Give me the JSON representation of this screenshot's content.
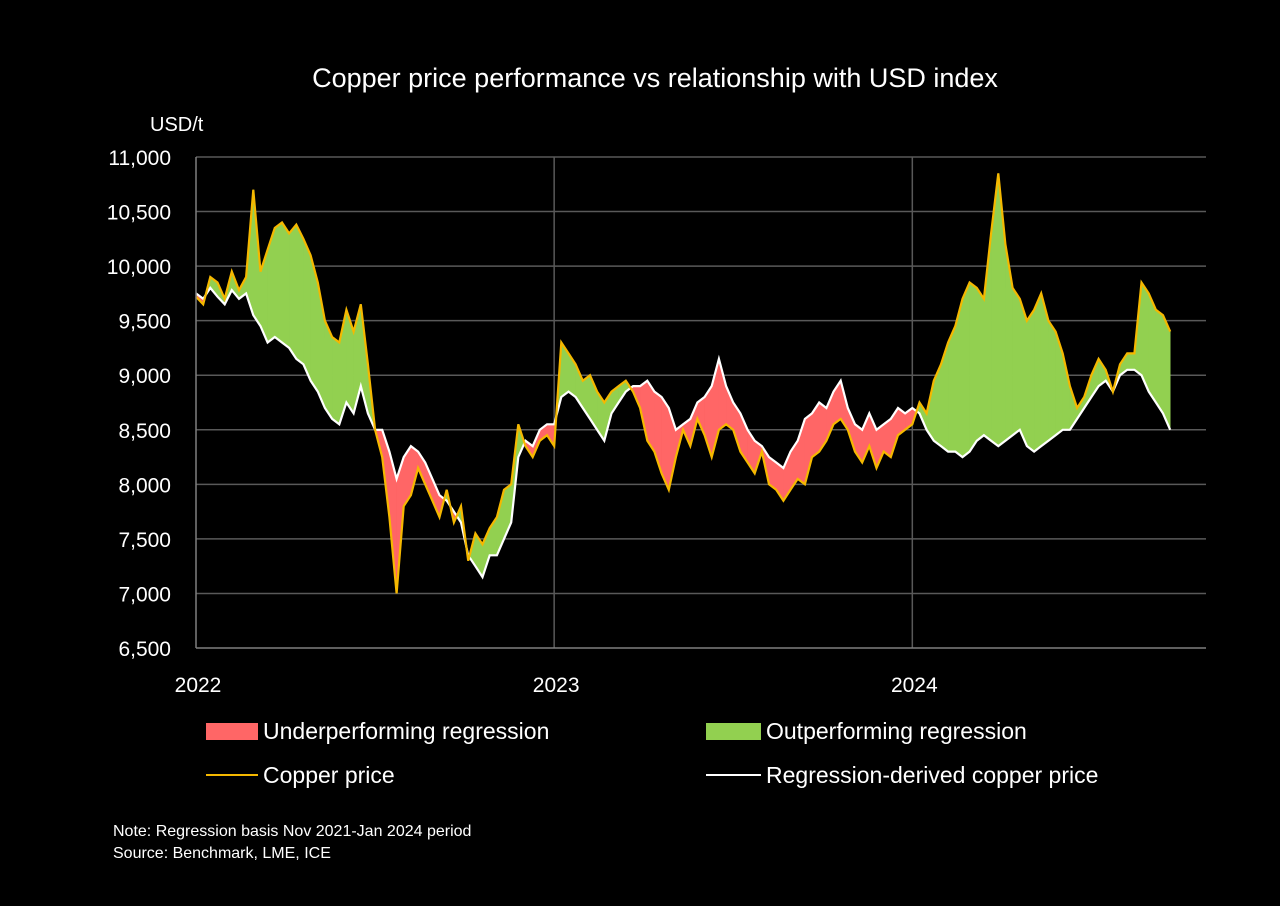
{
  "chart_data": {
    "type": "area",
    "title": "Copper price performance vs relationship with USD index",
    "ylabel": "USD/t",
    "xlabel": "",
    "ylim": [
      6500,
      11000
    ],
    "yticks": [
      6500,
      7000,
      7500,
      8000,
      8500,
      9000,
      9500,
      10000,
      10500,
      11000
    ],
    "ytick_labels": [
      "6,500",
      "7,000",
      "7,500",
      "8,000",
      "8,500",
      "9,000",
      "9,500",
      "10,000",
      "10,500",
      "11,000"
    ],
    "xlim": [
      2022.0,
      2024.82
    ],
    "xticks": [
      2022,
      2023,
      2024
    ],
    "xtick_labels": [
      "2022",
      "2023",
      "2024"
    ],
    "grid": true,
    "colors": {
      "underperforming": "#FF6666",
      "outperforming": "#92D050",
      "copper": "#F5B800",
      "regression": "#FFFFFF",
      "grid": "#595959",
      "background": "#000000"
    },
    "legend": {
      "placement": "bottom",
      "items": [
        {
          "label": "Underperforming regression",
          "kind": "fill",
          "key": "underperforming"
        },
        {
          "label": "Outperforming regression",
          "kind": "fill",
          "key": "outperforming"
        },
        {
          "label": "Copper price",
          "kind": "line",
          "key": "copper"
        },
        {
          "label": "Regression-derived copper price",
          "kind": "line",
          "key": "regression"
        }
      ]
    },
    "x": [
      2022.0,
      2022.02,
      2022.04,
      2022.06,
      2022.08,
      2022.1,
      2022.12,
      2022.14,
      2022.16,
      2022.18,
      2022.2,
      2022.22,
      2022.24,
      2022.26,
      2022.28,
      2022.3,
      2022.32,
      2022.34,
      2022.36,
      2022.38,
      2022.4,
      2022.42,
      2022.44,
      2022.46,
      2022.48,
      2022.5,
      2022.52,
      2022.54,
      2022.56,
      2022.58,
      2022.6,
      2022.62,
      2022.64,
      2022.66,
      2022.68,
      2022.7,
      2022.72,
      2022.74,
      2022.76,
      2022.78,
      2022.8,
      2022.82,
      2022.84,
      2022.86,
      2022.88,
      2022.9,
      2022.92,
      2022.94,
      2022.96,
      2022.98,
      2023.0,
      2023.02,
      2023.04,
      2023.06,
      2023.08,
      2023.1,
      2023.12,
      2023.14,
      2023.16,
      2023.18,
      2023.2,
      2023.22,
      2023.24,
      2023.26,
      2023.28,
      2023.3,
      2023.32,
      2023.34,
      2023.36,
      2023.38,
      2023.4,
      2023.42,
      2023.44,
      2023.46,
      2023.48,
      2023.5,
      2023.52,
      2023.54,
      2023.56,
      2023.58,
      2023.6,
      2023.62,
      2023.64,
      2023.66,
      2023.68,
      2023.7,
      2023.72,
      2023.74,
      2023.76,
      2023.78,
      2023.8,
      2023.82,
      2023.84,
      2023.86,
      2023.88,
      2023.9,
      2023.92,
      2023.94,
      2023.96,
      2023.98,
      2024.0,
      2024.02,
      2024.04,
      2024.06,
      2024.08,
      2024.1,
      2024.12,
      2024.14,
      2024.16,
      2024.18,
      2024.2,
      2024.22,
      2024.24,
      2024.26,
      2024.28,
      2024.3,
      2024.32,
      2024.34,
      2024.36,
      2024.38,
      2024.4,
      2024.42,
      2024.44,
      2024.46,
      2024.48,
      2024.5,
      2024.52,
      2024.54,
      2024.56,
      2024.58,
      2024.6,
      2024.62,
      2024.64,
      2024.66,
      2024.68,
      2024.7,
      2024.72,
      2024.74,
      2024.76,
      2024.78,
      2024.8,
      2024.82
    ],
    "series": [
      {
        "name": "Copper price",
        "values": [
          9720,
          9650,
          9900,
          9850,
          9700,
          9950,
          9780,
          9900,
          10700,
          9950,
          10150,
          10350,
          10400,
          10300,
          10380,
          10250,
          10100,
          9850,
          9500,
          9350,
          9300,
          9600,
          9400,
          9650,
          9100,
          8500,
          8250,
          7700,
          7000,
          7800,
          7900,
          8150,
          8000,
          7850,
          7700,
          7950,
          7650,
          7800,
          7300,
          7550,
          7450,
          7600,
          7700,
          7950,
          8000,
          8550,
          8350,
          8250,
          8400,
          8450,
          8350,
          9300,
          9200,
          9100,
          8950,
          9000,
          8850,
          8750,
          8850,
          8900,
          8950,
          8850,
          8700,
          8400,
          8300,
          8100,
          7950,
          8250,
          8500,
          8350,
          8600,
          8450,
          8250,
          8500,
          8550,
          8500,
          8300,
          8200,
          8100,
          8300,
          8000,
          7950,
          7850,
          7950,
          8050,
          8000,
          8250,
          8300,
          8400,
          8550,
          8600,
          8500,
          8300,
          8200,
          8350,
          8150,
          8300,
          8250,
          8450,
          8500,
          8550,
          8750,
          8650,
          8950,
          9100,
          9300,
          9450,
          9700,
          9850,
          9800,
          9700,
          10300,
          10850,
          10200,
          9800,
          9700,
          9500,
          9600,
          9750,
          9500,
          9400,
          9200,
          8900,
          8700,
          8800,
          9000,
          9150,
          9050,
          8850,
          9100,
          9200,
          9200,
          9850,
          9750,
          9600,
          9550,
          9400
        ],
        "key": "copper"
      },
      {
        "name": "Regression-derived copper price",
        "values": [
          9750,
          9700,
          9800,
          9720,
          9650,
          9780,
          9700,
          9750,
          9550,
          9450,
          9300,
          9350,
          9300,
          9250,
          9150,
          9100,
          8950,
          8850,
          8700,
          8600,
          8550,
          8750,
          8650,
          8900,
          8650,
          8500,
          8500,
          8300,
          8050,
          8250,
          8350,
          8300,
          8200,
          8050,
          7900,
          7850,
          7750,
          7650,
          7350,
          7250,
          7150,
          7350,
          7350,
          7500,
          7650,
          8250,
          8400,
          8350,
          8500,
          8550,
          8550,
          8800,
          8850,
          8800,
          8700,
          8600,
          8500,
          8400,
          8650,
          8750,
          8850,
          8900,
          8900,
          8950,
          8850,
          8800,
          8700,
          8500,
          8550,
          8600,
          8750,
          8800,
          8900,
          9150,
          8900,
          8750,
          8650,
          8500,
          8400,
          8350,
          8250,
          8200,
          8150,
          8300,
          8400,
          8600,
          8650,
          8750,
          8700,
          8850,
          8950,
          8700,
          8550,
          8500,
          8650,
          8500,
          8550,
          8600,
          8700,
          8650,
          8700,
          8650,
          8500,
          8400,
          8350,
          8300,
          8300,
          8250,
          8300,
          8400,
          8450,
          8400,
          8350,
          8400,
          8450,
          8500,
          8350,
          8300,
          8350,
          8400,
          8450,
          8500,
          8500,
          8600,
          8700,
          8800,
          8900,
          8950,
          8850,
          9000,
          9050,
          9050,
          9000,
          8850,
          8750,
          8650,
          8500
        ],
        "key": "regression"
      }
    ]
  },
  "footer": {
    "note": "Note: Regression basis Nov 2021-Jan 2024 period",
    "source": "Source: Benchmark, LME, ICE"
  }
}
